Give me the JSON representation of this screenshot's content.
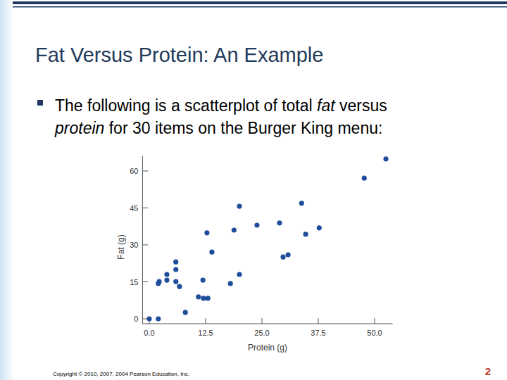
{
  "slide": {
    "title": "Fat Versus Protein: An Example",
    "text_lines": [
      [
        {
          "text": "The following is a scatterplot of total "
        },
        {
          "text": "fat",
          "italic": true
        },
        {
          "text": " versus"
        }
      ],
      [
        {
          "text": "protein",
          "italic": true
        },
        {
          "text": " for 30 items on the Burger King menu:"
        }
      ]
    ],
    "copyright": "Copyright © 2010, 2007, 2004 Pearson Education, Inc.",
    "page": 2
  },
  "chart_data": {
    "type": "scatter",
    "x_label": "Protein (g)",
    "y_label": "Fat (g)",
    "x": [
      0,
      2,
      2,
      2.2,
      3.9,
      3.9,
      5.9,
      5.9,
      5.9,
      6.7,
      8,
      10.9,
      11.9,
      12,
      13,
      12.8,
      13.9,
      18,
      18.8,
      20,
      20,
      23.9,
      28.9,
      29.7,
      30.8,
      33.8,
      34.7,
      37.7,
      47.7,
      52.5
    ],
    "values": [
      0,
      0,
      14.3,
      15.1,
      18,
      15.7,
      23.1,
      20,
      15.1,
      13.1,
      2.6,
      8.9,
      15.7,
      8.3,
      8.3,
      34.9,
      27.1,
      14.3,
      36,
      45.7,
      18,
      38,
      38.9,
      25.1,
      26,
      46.9,
      34.3,
      36.9,
      57.1,
      64.9
    ],
    "color": "#1f4e9c",
    "marker": "circle",
    "xlim": [
      -1.5,
      54
    ],
    "ylim": [
      -2,
      66
    ],
    "xticks": [
      {
        "value": 0,
        "label": "0.0"
      },
      {
        "value": 12.5,
        "label": "12.5"
      },
      {
        "value": 25,
        "label": "25.0"
      },
      {
        "value": 37.5,
        "label": "37.5"
      },
      {
        "value": 50,
        "label": "50.0"
      }
    ],
    "yticks": [
      0,
      15,
      30,
      45,
      60
    ],
    "grid": false
  }
}
